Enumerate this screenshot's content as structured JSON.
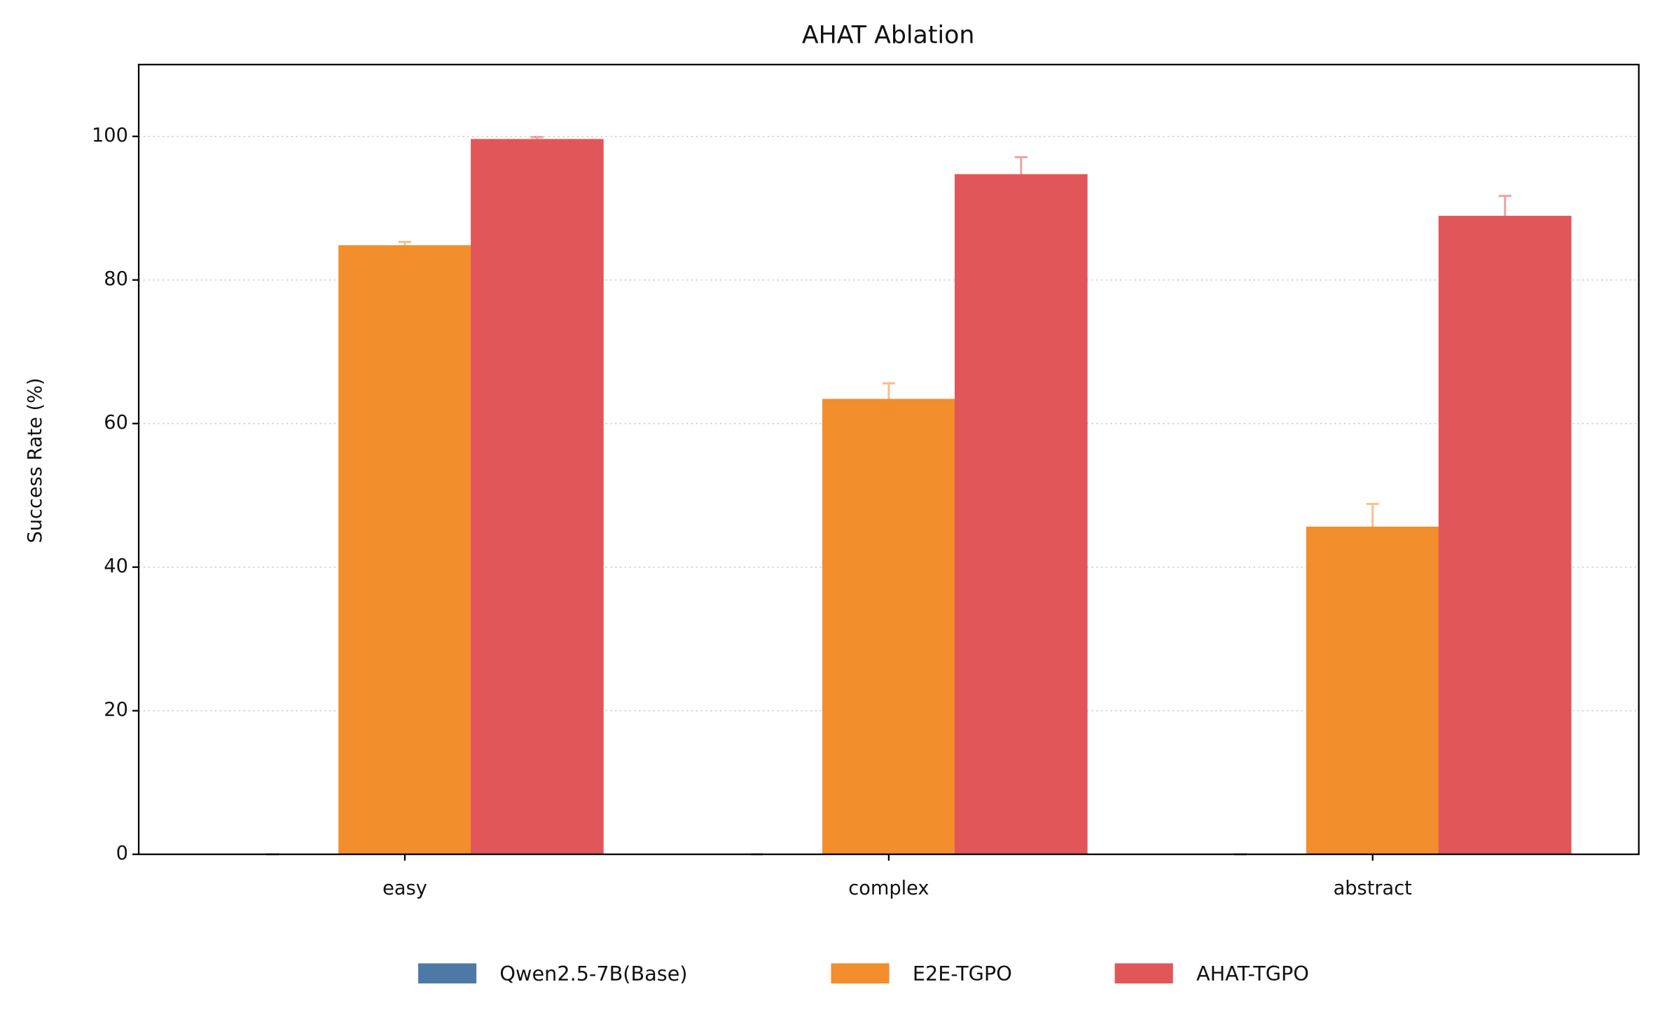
{
  "chart_data": {
    "type": "bar",
    "title": "AHAT Ablation",
    "y_label": "Success Rate (%)",
    "categories": [
      "easy",
      "complex",
      "abstract"
    ],
    "series": [
      {
        "name": "Qwen2.5-7B(Base)",
        "color": "#4e79a7",
        "values": [
          0,
          0,
          0
        ],
        "errors": [
          0,
          0,
          0
        ]
      },
      {
        "name": "E2E-TGPO",
        "color": "#f28e2b",
        "values": [
          84.8,
          63.4,
          45.6
        ],
        "errors": [
          0.5,
          2.2,
          3.2
        ]
      },
      {
        "name": "AHAT-TGPO",
        "color": "#e15759",
        "values": [
          99.6,
          94.7,
          88.9
        ],
        "errors": [
          0.3,
          2.4,
          2.8
        ]
      }
    ],
    "ylim": [
      0,
      110
    ],
    "yticks": [
      0,
      20,
      40,
      60,
      80,
      100
    ],
    "grid": true,
    "legend": "bottom"
  }
}
